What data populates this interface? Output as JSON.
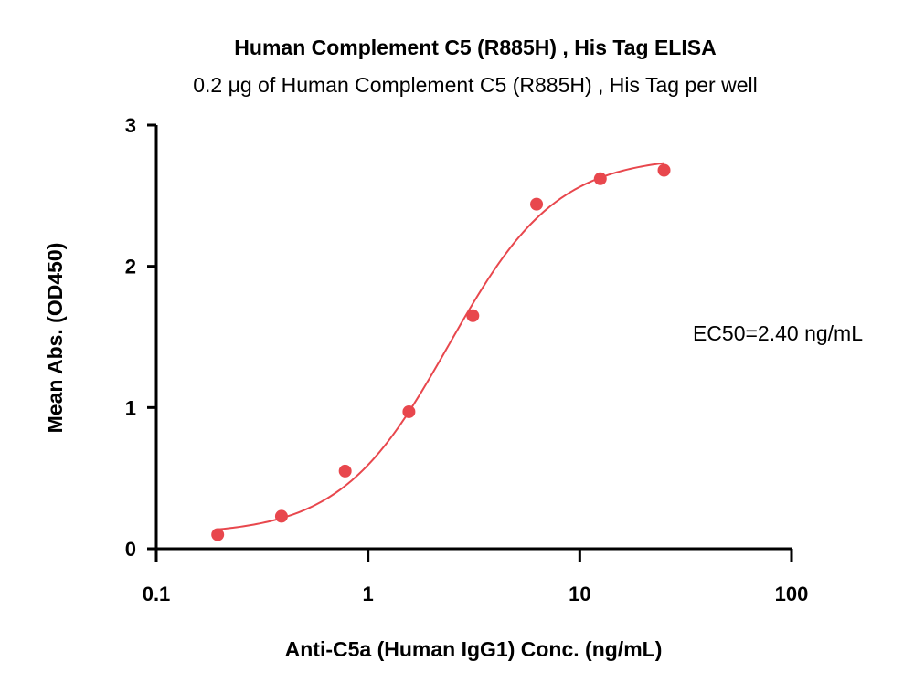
{
  "chart_data": {
    "type": "scatter",
    "title": "Human Complement C5 (R885H) , His Tag ELISA",
    "subtitle": "0.2 μg of Human Complement C5 (R885H) , His Tag per well",
    "xlabel": "Anti-C5a (Human IgG1) Conc. (ng/mL)",
    "ylabel": "Mean Abs. (OD450)",
    "x_scale": "log",
    "xlim": [
      0.1,
      100
    ],
    "ylim": [
      0,
      3
    ],
    "x_ticks": [
      0.1,
      1,
      10,
      100
    ],
    "x_tick_labels": [
      "0.1",
      "1",
      "10",
      "100"
    ],
    "y_ticks": [
      0,
      1,
      2,
      3
    ],
    "y_tick_labels": [
      "0",
      "1",
      "2",
      "3"
    ],
    "grid": false,
    "series": [
      {
        "x": [
          0.195,
          0.39,
          0.78,
          1.56,
          3.125,
          6.25,
          12.5,
          25
        ],
        "y": [
          0.1,
          0.23,
          0.55,
          0.97,
          1.65,
          2.44,
          2.62,
          2.68
        ],
        "color": "#e8474d"
      }
    ],
    "fit_curve": {
      "model": "4PL",
      "bottom": 0.1,
      "top": 2.78,
      "ec50": 2.4,
      "hill": 1.7,
      "color": "#e8474d"
    },
    "annotation": "EC50=2.40 ng/mL"
  }
}
